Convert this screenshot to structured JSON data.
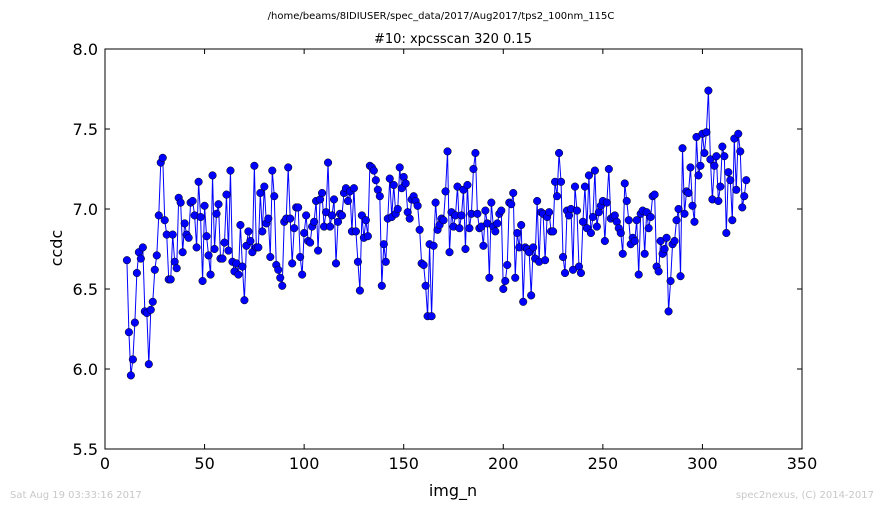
{
  "header": {
    "path": "/home/beams/8IDIUSER/spec_data/2017/Aug2017/tps2_100nm_115C",
    "title": "#10: xpcsscan 320 0.15"
  },
  "footer": {
    "left": "Sat Aug 19 03:33:16 2017",
    "right": "spec2nexus, (C) 2014-2017"
  },
  "chart_data": {
    "type": "line",
    "title": "#10: xpcsscan 320 0.15",
    "xlabel": "img_n",
    "ylabel": "ccdc",
    "xlim": [
      0,
      350
    ],
    "ylim": [
      5.5,
      8.0
    ],
    "xticks": [
      0,
      50,
      100,
      150,
      200,
      250,
      300,
      350
    ],
    "yticks": [
      5.5,
      6.0,
      6.5,
      7.0,
      7.5,
      8.0
    ],
    "xtick_labels": [
      "0",
      "50",
      "100",
      "150",
      "200",
      "250",
      "300",
      "350"
    ],
    "ytick_labels": [
      "5.5",
      "6.0",
      "6.5",
      "7.0",
      "7.5",
      "8.0"
    ],
    "marker": "circle",
    "color": "#0000ff",
    "grid": false,
    "x_start": 11,
    "series": [
      {
        "values": [
          6.68,
          6.23,
          5.96,
          6.06,
          6.29,
          6.6,
          6.73,
          6.69,
          6.76,
          6.36,
          6.35,
          6.03,
          6.37,
          6.42,
          6.62,
          6.71,
          6.96,
          7.29,
          7.32,
          6.93,
          6.84,
          6.56,
          6.56,
          6.84,
          6.67,
          6.63,
          7.07,
          7.04,
          6.73,
          6.91,
          6.84,
          6.82,
          7.04,
          7.05,
          6.96,
          6.76,
          7.17,
          6.95,
          6.55,
          7.02,
          6.83,
          6.71,
          6.59,
          7.21,
          6.75,
          6.97,
          7.03,
          6.69,
          6.69,
          6.79,
          7.09,
          6.74,
          7.24,
          6.67,
          6.61,
          6.66,
          6.59,
          6.9,
          6.64,
          6.43,
          6.77,
          6.86,
          6.8,
          6.73,
          7.27,
          6.76,
          6.76,
          7.1,
          6.86,
          7.14,
          6.91,
          6.94,
          6.7,
          7.24,
          7.08,
          6.65,
          6.62,
          6.57,
          6.52,
          6.92,
          6.94,
          7.26,
          6.94,
          6.66,
          6.88,
          7.01,
          7.01,
          6.7,
          6.59,
          6.85,
          6.96,
          6.8,
          6.79,
          6.89,
          6.92,
          7.05,
          6.74,
          7.06,
          7.1,
          6.89,
          6.98,
          7.29,
          6.89,
          6.96,
          7.06,
          6.66,
          6.92,
          6.97,
          6.96,
          7.1,
          7.13,
          7.05,
          7.11,
          6.86,
          7.13,
          6.86,
          6.67,
          6.49,
          6.96,
          6.82,
          6.93,
          6.83,
          7.27,
          7.26,
          7.24,
          7.18,
          7.12,
          7.08,
          6.52,
          6.78,
          6.67,
          6.94,
          7.19,
          6.95,
          7.15,
          6.97,
          7.0,
          7.26,
          7.13,
          7.2,
          7.16,
          6.98,
          6.94,
          7.06,
          7.08,
          7.05,
          7.02,
          6.87,
          6.66,
          6.65,
          6.52,
          6.33,
          6.78,
          6.33,
          6.77,
          7.04,
          6.87,
          6.9,
          6.94,
          6.93,
          7.11,
          7.36,
          6.73,
          6.98,
          6.89,
          6.96,
          7.14,
          6.88,
          6.96,
          7.12,
          6.75,
          7.15,
          6.88,
          6.97,
          7.25,
          7.35,
          6.97,
          6.88,
          6.89,
          6.77,
          6.99,
          6.91,
          6.57,
          7.04,
          6.89,
          6.86,
          6.91,
          6.97,
          6.99,
          6.5,
          6.55,
          6.65,
          7.04,
          7.03,
          7.1,
          6.57,
          6.85,
          6.76,
          6.9,
          6.42,
          6.76,
          6.75,
          6.73,
          6.46,
          6.76,
          6.69,
          7.05,
          6.67,
          6.98,
          6.97,
          6.68,
          6.95,
          6.98,
          6.86,
          6.86,
          7.17,
          7.08,
          7.35,
          7.17,
          6.7,
          6.6,
          6.99,
          6.96,
          7.0,
          6.62,
          7.14,
          6.99,
          6.64,
          6.6,
          6.92,
          7.14,
          6.88,
          7.21,
          6.85,
          6.95,
          7.24,
          6.89,
          6.98,
          7.02,
          7.05,
          6.8,
          7.04,
          7.25,
          6.94,
          6.95,
          6.96,
          6.92,
          6.88,
          6.85,
          6.72,
          7.16,
          7.05,
          6.93,
          6.78,
          6.82,
          6.8,
          6.93,
          6.59,
          6.97,
          6.99,
          6.72,
          6.98,
          6.88,
          6.95,
          7.08,
          7.09,
          6.64,
          6.61,
          6.8,
          6.72,
          6.75,
          6.82,
          6.36,
          6.55,
          6.78,
          6.8,
          6.93,
          7.0,
          6.58,
          7.38,
          6.97,
          7.11,
          7.1,
          7.26,
          7.02,
          6.92,
          7.45,
          7.21,
          7.27,
          7.47,
          7.35,
          7.48,
          7.74,
          7.31,
          7.06,
          7.27,
          7.33,
          7.05,
          7.14,
          7.39,
          7.33,
          6.85,
          7.23,
          7.18,
          6.93,
          7.44,
          7.12,
          7.47,
          7.36,
          7.01,
          7.08,
          7.18
        ]
      }
    ]
  }
}
